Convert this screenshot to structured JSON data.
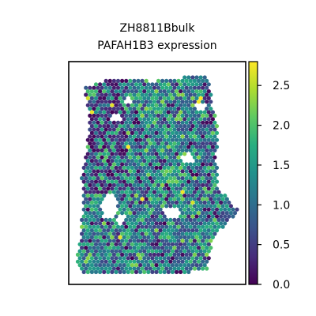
{
  "chart_data": {
    "type": "scatter",
    "title_lines": [
      "ZH8811Bbulk",
      "PAFAH1B3 expression"
    ],
    "xlabel": "",
    "ylabel": "",
    "grid": false,
    "legend": "none",
    "colorbar": {
      "colormap": "viridis",
      "range": [
        0.0,
        2.8
      ],
      "ticks": [
        0.0,
        0.5,
        1.0,
        1.5,
        2.0,
        2.5
      ],
      "tick_labels": [
        "0.0",
        "0.5",
        "1.0",
        "1.5",
        "2.0",
        "2.5"
      ]
    }
  }
}
